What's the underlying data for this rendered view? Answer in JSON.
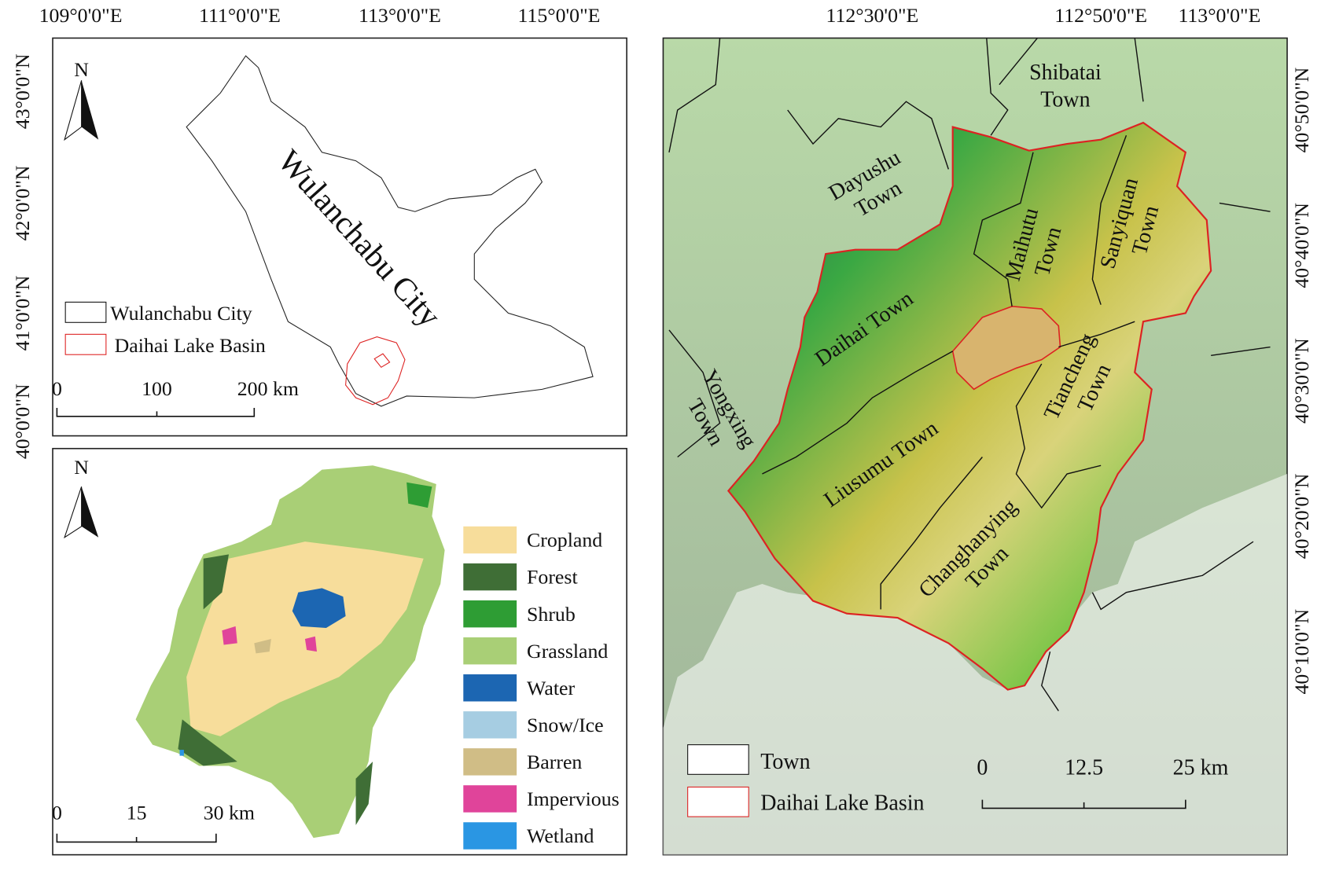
{
  "panel_a": {
    "lon_labels": [
      "109°0'0\"E",
      "111°0'0\"E",
      "113°0'0\"E",
      "115°0'0\"E"
    ],
    "lat_labels": [
      "43°0'0\"N",
      "42°0'0\"N",
      "41°0'0\"N",
      "40°0'0\"N"
    ],
    "north": "N",
    "city_label": "Wulanchabu City",
    "legend": [
      "Wulanchabu City",
      "Daihai Lake Basin"
    ],
    "scale": [
      "0",
      "100",
      "200 km"
    ]
  },
  "panel_b": {
    "north": "N",
    "legend": [
      {
        "label": "Cropland",
        "color": "#f7dd9b"
      },
      {
        "label": "Forest",
        "color": "#3f6e36"
      },
      {
        "label": "Shrub",
        "color": "#2e9d34"
      },
      {
        "label": "Grassland",
        "color": "#a9cf76"
      },
      {
        "label": "Water",
        "color": "#1c66b2"
      },
      {
        "label": "Snow/Ice",
        "color": "#a6cde2"
      },
      {
        "label": "Barren",
        "color": "#d0bd86"
      },
      {
        "label": "Impervious",
        "color": "#e0449a"
      },
      {
        "label": "Wetland",
        "color": "#2a96e3"
      }
    ],
    "scale": [
      "0",
      "15",
      "30 km"
    ]
  },
  "panel_c": {
    "lon_labels": [
      "112°30'0\"E",
      "112°50'0\"E",
      "113°0'0\"E"
    ],
    "lat_labels": [
      "40°50'0\"N",
      "40°40'0\"N",
      "40°30'0\"N",
      "40°20'0\"N",
      "40°10'0\"N"
    ],
    "towns": [
      {
        "lines": [
          "Shibatai",
          "Town"
        ]
      },
      {
        "lines": [
          "Dayushu",
          "Town"
        ]
      },
      {
        "lines": [
          "Maihutu",
          "Town"
        ]
      },
      {
        "lines": [
          "Sanyiquan",
          "Town"
        ]
      },
      {
        "lines": [
          "Daihai Town"
        ]
      },
      {
        "lines": [
          "Yongxing",
          "Town"
        ]
      },
      {
        "lines": [
          "Tiancheng",
          "Town"
        ]
      },
      {
        "lines": [
          "Liusumu Town"
        ]
      },
      {
        "lines": [
          "Changhanying",
          "Town"
        ]
      }
    ],
    "legend": [
      "Town",
      "Daihai Lake Basin"
    ],
    "scale": [
      "0",
      "12.5",
      "25 km"
    ]
  }
}
